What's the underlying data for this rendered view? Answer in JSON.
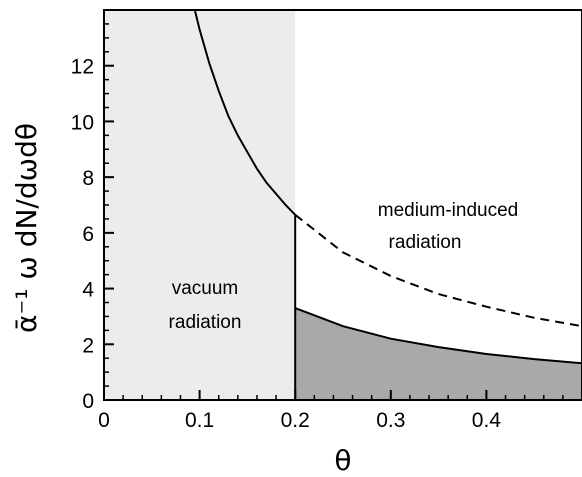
{
  "chart_data": {
    "type": "area",
    "xlabel": "θ",
    "ylabel": "ᾱ⁻¹ ω dN/dωdθ",
    "xlim": [
      0,
      0.5
    ],
    "ylim": [
      0,
      14
    ],
    "x_ticks": [
      "0",
      "0.1",
      "0.2",
      "0.3",
      "0.4"
    ],
    "y_ticks": [
      "0",
      "2",
      "4",
      "6",
      "8",
      "10",
      "12"
    ],
    "grid": false,
    "legend": "none",
    "series": [
      {
        "style": "solid line",
        "x": [
          0.095,
          0.1,
          0.11,
          0.12,
          0.13,
          0.14,
          0.15,
          0.16,
          0.17,
          0.18,
          0.19,
          0.2
        ],
        "y": [
          14.0,
          13.3,
          12.1,
          11.1,
          10.2,
          9.5,
          8.9,
          8.3,
          7.8,
          7.4,
          7.0,
          6.65
        ]
      },
      {
        "style": "dashed line",
        "x": [
          0.2,
          0.25,
          0.3,
          0.35,
          0.4,
          0.45,
          0.5
        ],
        "y": [
          6.65,
          5.3,
          4.45,
          3.8,
          3.35,
          2.95,
          2.65
        ]
      },
      {
        "style": "solid line, dark shaded area below",
        "x": [
          0.2,
          0.25,
          0.3,
          0.35,
          0.4,
          0.45,
          0.5
        ],
        "y": [
          3.3,
          2.65,
          2.2,
          1.9,
          1.65,
          1.47,
          1.32
        ]
      }
    ],
    "regions": [
      {
        "label": "vacuum radiation",
        "x_range": [
          0,
          0.2
        ],
        "color": "#ececec"
      },
      {
        "label": "medium-induced radiation",
        "x_range": [
          0.2,
          0.5
        ],
        "color": "#ffffff"
      }
    ],
    "annotations": [
      {
        "lines": [
          "vacuum",
          "radiation"
        ]
      },
      {
        "lines": [
          "medium-induced",
          "radiation"
        ]
      }
    ],
    "colors": {
      "line": "#000000",
      "vacuum_fill": "#ececec",
      "shaded_fill": "#a9a9a9"
    }
  }
}
